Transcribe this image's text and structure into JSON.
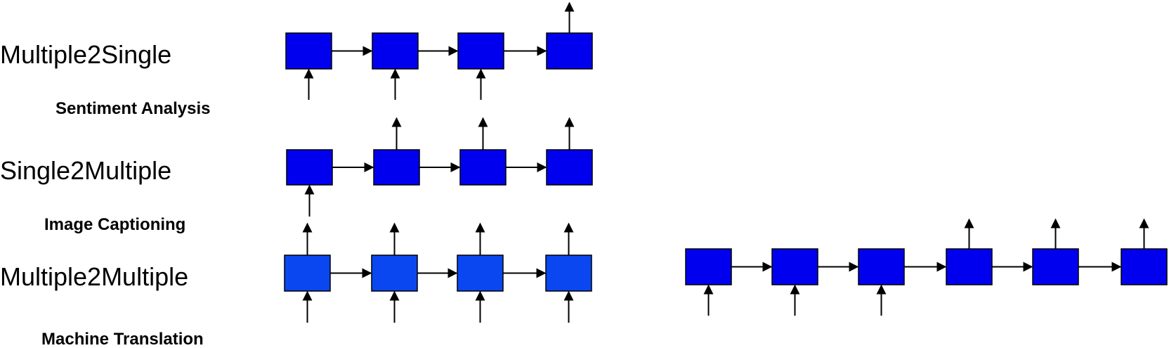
{
  "colors": {
    "cell": "#0000ee",
    "cell_light": "#0a47f0",
    "stroke": "#000000"
  },
  "diagrams": [
    {
      "title": "Multiple2Single",
      "subtitle": "Sentiment Analysis",
      "cells": 4,
      "inputs": [
        true,
        true,
        true,
        false
      ],
      "outputs": [
        false,
        false,
        false,
        true
      ],
      "color_key": "cell"
    },
    {
      "title": "Single2Multiple",
      "subtitle": "Image Captioning",
      "cells": 4,
      "inputs": [
        true,
        false,
        false,
        false
      ],
      "outputs": [
        false,
        true,
        true,
        true
      ],
      "color_key": "cell"
    },
    {
      "title": "Multiple2Multiple",
      "subtitle": "Machine Translation",
      "cells": 4,
      "inputs": [
        true,
        true,
        true,
        true
      ],
      "outputs": [
        true,
        true,
        true,
        true
      ],
      "color_key": "cell_light"
    },
    {
      "title": "",
      "subtitle": "",
      "cells": 6,
      "inputs": [
        true,
        true,
        true,
        false,
        false,
        false
      ],
      "outputs": [
        false,
        false,
        false,
        true,
        true,
        true
      ],
      "color_key": "cell"
    }
  ]
}
